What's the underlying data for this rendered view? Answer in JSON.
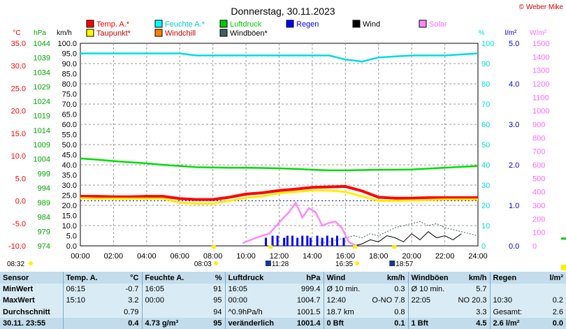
{
  "chart_data": {
    "type": "line",
    "title": "Donnerstag, 30.11.2023",
    "credit": "© Weber Mike",
    "x_ticks": [
      "00:00",
      "02:00",
      "04:00",
      "06:00",
      "08:00",
      "10:00",
      "12:00",
      "14:00",
      "16:00",
      "18:00",
      "20:00",
      "22:00",
      "24:00"
    ],
    "axes": {
      "temp": {
        "unit": "°C",
        "color": "#ff0000",
        "range": [
          -10,
          35
        ],
        "ticks": [
          "35.0",
          "30.0",
          "25.0",
          "20.0",
          "15.0",
          "10.0",
          "5.0",
          "0.0",
          "-5.0",
          "-10.0"
        ]
      },
      "pressure": {
        "unit": "hPa",
        "color": "#00aa00",
        "range": [
          974,
          1044
        ],
        "ticks": [
          "1044",
          "1039",
          "1034",
          "1029",
          "1024",
          "1019",
          "1014",
          "1009",
          "1004",
          "999",
          "994",
          "989",
          "984",
          "979",
          "974"
        ]
      },
      "wind": {
        "unit": "km/h",
        "color": "#000000",
        "range": [
          0,
          100
        ],
        "ticks": [
          "100.0",
          "95.0",
          "90.0",
          "85.0",
          "80.0",
          "75.0",
          "70.0",
          "65.0",
          "60.0",
          "55.0",
          "50.0",
          "45.0",
          "40.0",
          "35.0",
          "30.0",
          "25.0",
          "20.0",
          "15.0",
          "10.0",
          "5.0",
          "0.0"
        ]
      },
      "humidity": {
        "unit": "%",
        "color": "#00dddd",
        "range": [
          0,
          100
        ],
        "ticks": [
          "100",
          "90",
          "80",
          "70",
          "60",
          "50",
          "40",
          "30",
          "20",
          "10",
          "0"
        ]
      },
      "rain": {
        "unit": "l/m²",
        "color": "#0000cc",
        "range": [
          0,
          5
        ],
        "ticks": [
          "5.0",
          "4.0",
          "3.0",
          "2.0",
          "1.0",
          "0.0"
        ]
      },
      "solar": {
        "unit": "W/m²",
        "color": "#ff66ff",
        "range": [
          0,
          1500
        ],
        "ticks": [
          "1500",
          "1400",
          "1300",
          "1200",
          "1100",
          "1000",
          "900",
          "800",
          "700",
          "600",
          "500",
          "400",
          "300",
          "200",
          "100",
          "0"
        ]
      }
    },
    "legend": [
      {
        "label": "Temp. A.*",
        "color": "#ff0000"
      },
      {
        "label": "Feuchte A.*",
        "color": "#00ffff"
      },
      {
        "label": "Luftdruck",
        "color": "#00cc00"
      },
      {
        "label": "Regen",
        "color": "#0000ff"
      },
      {
        "label": "Wind",
        "color": "#000000"
      },
      {
        "label": "Solar",
        "color": "#ff88ff"
      },
      {
        "label": "Taupunkt*",
        "color": "#ffff00"
      },
      {
        "label": "Windchill",
        "color": "#ff8000"
      },
      {
        "label": "Windböen*",
        "color": "#406060"
      }
    ],
    "series": [
      {
        "name": "Temp. A.*",
        "axis": "temp",
        "color": "#ff0000",
        "x": [
          0,
          1,
          2,
          3,
          4,
          5,
          6,
          7,
          8,
          9,
          10,
          11,
          12,
          13,
          14,
          15,
          16,
          17,
          18,
          19,
          20,
          21,
          22,
          23,
          24
        ],
        "y": [
          1.0,
          1.0,
          0.9,
          0.9,
          1.0,
          1.0,
          0.5,
          0.3,
          0.3,
          0.8,
          1.5,
          1.8,
          2.3,
          2.6,
          3.0,
          3.1,
          3.2,
          2.2,
          0.8,
          0.6,
          0.6,
          0.7,
          0.7,
          0.7,
          0.7
        ]
      },
      {
        "name": "Taupunkt*",
        "axis": "temp",
        "color": "#ffee00",
        "x": [
          0,
          1,
          2,
          3,
          4,
          5,
          6,
          7,
          8,
          9,
          10,
          11,
          12,
          13,
          14,
          15,
          16,
          17,
          18,
          19,
          20,
          21,
          22,
          23,
          24
        ],
        "y": [
          0.6,
          0.5,
          0.5,
          0.5,
          0.5,
          0.5,
          -0.4,
          -0.6,
          -0.6,
          0.0,
          0.7,
          1.0,
          1.7,
          2.0,
          2.3,
          2.3,
          2.0,
          1.0,
          0.0,
          0.0,
          0.1,
          0.2,
          0.3,
          0.3,
          0.3
        ]
      },
      {
        "name": "Luftdruck",
        "axis": "pressure",
        "color": "#00dd00",
        "x": [
          0,
          1,
          2,
          3,
          4,
          5,
          6,
          7,
          8,
          9,
          10,
          11,
          12,
          13,
          14,
          15,
          16,
          17,
          18,
          19,
          20,
          21,
          22,
          23,
          24
        ],
        "y": [
          1004.2,
          1003.8,
          1003.3,
          1002.9,
          1002.5,
          1002.0,
          1001.6,
          1001.2,
          1001.1,
          1001.0,
          1001.0,
          1000.9,
          1000.8,
          1000.6,
          1000.3,
          1000.1,
          1000.1,
          1000.2,
          1000.3,
          1000.3,
          1000.4,
          1000.7,
          1001.0,
          1001.3,
          1001.6
        ]
      },
      {
        "name": "Feuchte A.*",
        "axis": "humidity",
        "color": "#00dddd",
        "x": [
          0,
          2,
          4,
          6,
          7,
          8,
          10,
          12,
          14,
          15,
          16,
          17,
          18,
          20,
          22,
          24
        ],
        "y": [
          95,
          95,
          95,
          95,
          94,
          94,
          94,
          94,
          94,
          94,
          92,
          91,
          93,
          94,
          94,
          95
        ]
      }
    ],
    "solar_series": {
      "x": [
        9.8,
        10.2,
        10.6,
        11.0,
        11.4,
        11.8,
        12.2,
        12.6,
        13.0,
        13.4,
        13.8,
        14.2,
        14.6,
        15.0,
        15.4,
        15.8,
        16.2,
        16.6
      ],
      "y": [
        20,
        40,
        60,
        75,
        90,
        145,
        200,
        250,
        320,
        210,
        280,
        250,
        150,
        170,
        180,
        130,
        30,
        0
      ]
    },
    "rain_bars": {
      "x": [
        11.2,
        11.6,
        11.9,
        12.3,
        12.5,
        12.8,
        13.1,
        13.4,
        13.7,
        13.9,
        14.3,
        14.6,
        14.9,
        15.2,
        15.5,
        15.9
      ],
      "y": [
        0.2,
        0.25,
        0.25,
        0.2,
        0.25,
        0.25,
        0.2,
        0.25,
        0.25,
        0.2,
        0.25,
        0.2,
        0.25,
        0.2,
        0.25,
        0.2
      ]
    },
    "sun_markers": {
      "times": [
        "08:03",
        "11:28",
        "16:35",
        "18:57"
      ],
      "x": [
        8.05,
        11.47,
        16.58,
        18.95
      ]
    },
    "top_left_time": "08:32",
    "grid": true
  },
  "stats": {
    "headers": [
      "Sensor",
      "Temp. A.",
      "°C",
      "Feuchte A.",
      "%",
      "Luftdruck",
      "hPa",
      "Wind",
      "km/h",
      "Windböen",
      "km/h",
      "Regen",
      "l/m²"
    ],
    "rows": [
      [
        "MinWert",
        "06:15",
        "-0.7",
        "16:05",
        "91",
        "16:05",
        "999.4",
        "Ø 10 min.",
        "0.3",
        "Ø 10 min.",
        "5.7",
        "",
        ""
      ],
      [
        "MaxWert",
        "15:10",
        "3.2",
        "00:00",
        "95",
        "00:00",
        "1004.7",
        "12:40",
        "O-NO 7.8",
        "22:05",
        "NO 20.3",
        "10:30",
        "0.2"
      ],
      [
        "Durchschnitt",
        "",
        "0.79",
        "",
        "94",
        "^0.9hPa/h",
        "1001.5",
        "18.7 km",
        "0.8",
        "",
        "3.3",
        "Gesamt:",
        "2.6"
      ],
      [
        "30.11. 23:55",
        "",
        "0.4",
        "4.73 g/m³",
        "95",
        "veränderlich",
        "1001.4",
        "0 Bft",
        "0.1",
        "1 Bft",
        "4.5",
        "2.6 l/m²",
        "0.0"
      ]
    ]
  }
}
